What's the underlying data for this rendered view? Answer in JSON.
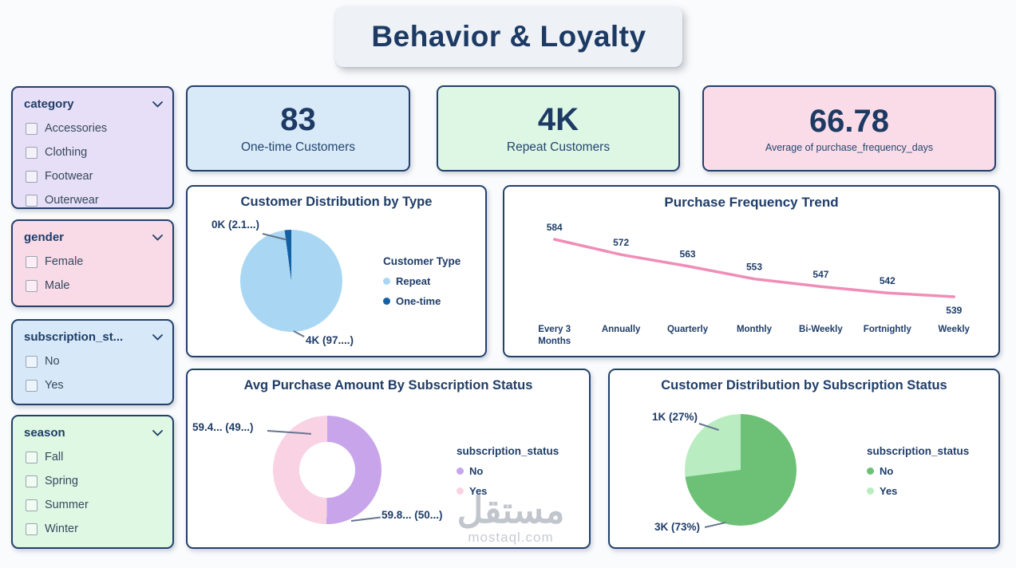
{
  "title": "Behavior & Loyalty",
  "watermark": {
    "line1": "مستقل",
    "line2": "mostaql.com"
  },
  "slicers": [
    {
      "label": "category",
      "items": [
        "Accessories",
        "Clothing",
        "Footwear",
        "Outerwear"
      ]
    },
    {
      "label": "gender",
      "items": [
        "Female",
        "Male"
      ]
    },
    {
      "label": "subscription_st...",
      "items": [
        "No",
        "Yes"
      ]
    },
    {
      "label": "season",
      "items": [
        "Fall",
        "Spring",
        "Summer",
        "Winter"
      ]
    }
  ],
  "kpis": [
    {
      "value": "83",
      "label": "One-time Customers",
      "bg": "#d8eaf8"
    },
    {
      "value": "4K",
      "label": "Repeat Customers",
      "bg": "#def7e5"
    },
    {
      "value": "66.78",
      "label": "Average of purchase_frequency_days",
      "bg": "#fadce8"
    }
  ],
  "chart_data": [
    {
      "type": "pie",
      "title": "Customer Distribution by Type",
      "legend_title": "Customer Type",
      "legend_position": "right",
      "slices": [
        {
          "name": "Repeat",
          "pct": 97.9,
          "label": "4K (97....)",
          "color": "#a9d7f3"
        },
        {
          "name": "One-time",
          "pct": 2.1,
          "label": "0K (2.1...)",
          "color": "#1361a4"
        }
      ]
    },
    {
      "type": "line",
      "title": "Purchase Frequency Trend",
      "categories": [
        "Every 3 Months",
        "Annually",
        "Quarterly",
        "Monthly",
        "Bi-Weekly",
        "Fortnightly",
        "Weekly"
      ],
      "values": [
        584,
        572,
        563,
        553,
        547,
        542,
        539
      ],
      "line_color": "#f08db7",
      "grid": false,
      "data_labels": true
    },
    {
      "type": "donut",
      "title": "Avg Purchase Amount By Subscription Status",
      "legend_title": "subscription_status",
      "legend_position": "right",
      "slices": [
        {
          "name": "No",
          "pct": 50.2,
          "label": "59.8... (50...)",
          "color": "#c8a5ea"
        },
        {
          "name": "Yes",
          "pct": 49.8,
          "label": "59.4... (49...)",
          "color": "#f9d3e3"
        }
      ]
    },
    {
      "type": "pie",
      "title": "Customer Distribution by Subscription Status",
      "legend_title": "subscription_status",
      "legend_position": "right",
      "slices": [
        {
          "name": "No",
          "pct": 73,
          "label": "3K (73%)",
          "color": "#6dc176"
        },
        {
          "name": "Yes",
          "pct": 27,
          "label": "1K (27%)",
          "color": "#baecc1"
        }
      ]
    }
  ]
}
